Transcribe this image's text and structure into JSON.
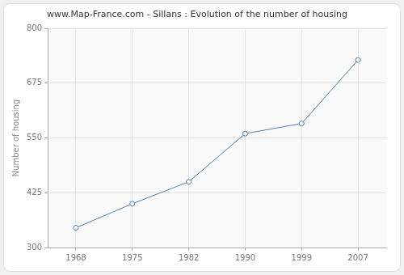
{
  "chart_data": {
    "type": "line",
    "title": "www.Map-France.com - Sillans : Evolution of the number of housing",
    "y_label": "Number of housing",
    "categories": [
      "1968",
      "1975",
      "1982",
      "1990",
      "1999",
      "2007"
    ],
    "values": [
      345,
      400,
      450,
      560,
      583,
      728
    ],
    "color": "#4f7faf",
    "marker": "circle",
    "line_style": "solid",
    "ylim": [
      300,
      800
    ],
    "yticks": [
      300,
      425,
      550,
      675,
      800
    ],
    "grid": true
  }
}
